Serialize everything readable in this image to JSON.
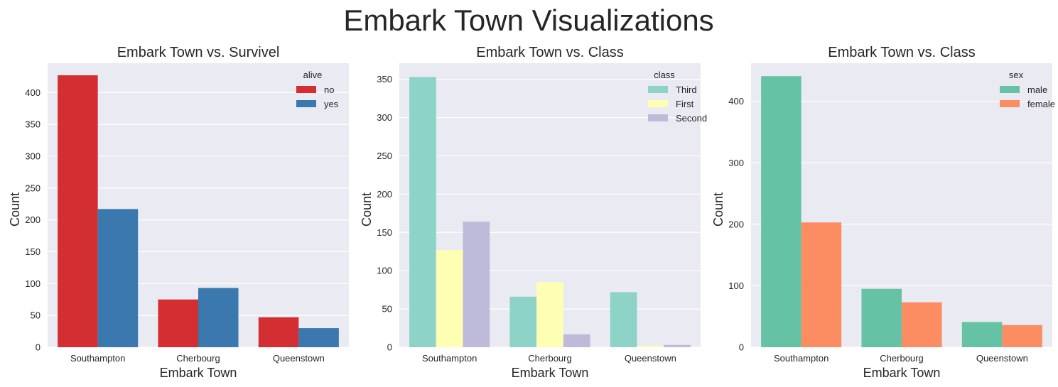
{
  "figure": {
    "suptitle": "Embark Town Visualizations",
    "background": "#ffffff",
    "plot_background": "#eaeaf2",
    "grid_color": "#ffffff"
  },
  "chart_data": [
    {
      "type": "bar",
      "title": "Embark Town vs. Survivel",
      "xlabel": "Embark Town",
      "ylabel": "Count",
      "categories": [
        "Southampton",
        "Cherbourg",
        "Queenstown"
      ],
      "ylim": [
        0,
        446
      ],
      "yticks": [
        0,
        50,
        100,
        150,
        200,
        250,
        300,
        350,
        400
      ],
      "grid": true,
      "legend": {
        "title": "alive",
        "position": "top-right"
      },
      "series": [
        {
          "name": "no",
          "color": "#d32f32",
          "values": [
            427,
            75,
            47
          ]
        },
        {
          "name": "yes",
          "color": "#3a78ae",
          "values": [
            217,
            93,
            30
          ]
        }
      ]
    },
    {
      "type": "bar",
      "title": "Embark Town vs. Class",
      "xlabel": "Embark Town",
      "ylabel": "Count",
      "categories": [
        "Southampton",
        "Cherbourg",
        "Queenstown"
      ],
      "ylim": [
        0,
        371
      ],
      "yticks": [
        0,
        50,
        100,
        150,
        200,
        250,
        300,
        350
      ],
      "grid": true,
      "legend": {
        "title": "class",
        "position": "top-right"
      },
      "series": [
        {
          "name": "Third",
          "color": "#8dd3c7",
          "values": [
            353,
            66,
            72
          ]
        },
        {
          "name": "First",
          "color": "#ffffb3",
          "values": [
            127,
            85,
            2
          ]
        },
        {
          "name": "Second",
          "color": "#bebada",
          "values": [
            164,
            17,
            3
          ]
        }
      ]
    },
    {
      "type": "bar",
      "title": "Embark Town vs. Class",
      "xlabel": "Embark Town",
      "ylabel": "Count",
      "categories": [
        "Southampton",
        "Cherbourg",
        "Queenstown"
      ],
      "ylim": [
        0,
        462
      ],
      "yticks": [
        0,
        100,
        200,
        300,
        400
      ],
      "grid": true,
      "legend": {
        "title": "sex",
        "position": "top-right"
      },
      "series": [
        {
          "name": "male",
          "color": "#66c2a5",
          "values": [
            441,
            95,
            41
          ]
        },
        {
          "name": "female",
          "color": "#fc8d62",
          "values": [
            203,
            73,
            36
          ]
        }
      ]
    }
  ]
}
